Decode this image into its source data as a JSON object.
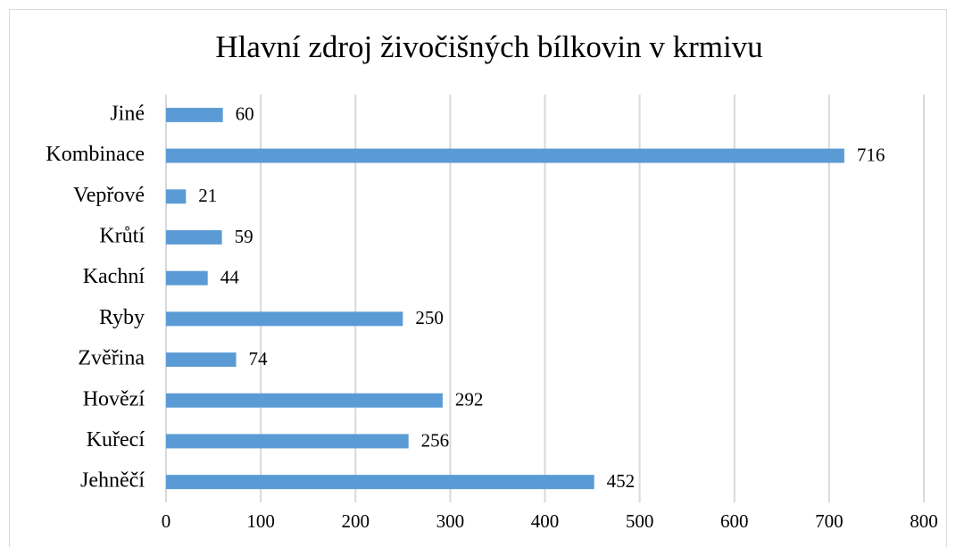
{
  "chart_data": {
    "type": "bar",
    "orientation": "horizontal",
    "title": "Hlavní zdroj živočišných bílkovin v krmivu",
    "categories": [
      "Jiné",
      "Kombinace",
      "Vepřové",
      "Krůtí",
      "Kachní",
      "Ryby",
      "Zvěřina",
      "Hovězí",
      "Kuřecí",
      "Jehněčí"
    ],
    "values": [
      60,
      716,
      21,
      59,
      44,
      250,
      74,
      292,
      256,
      452
    ],
    "color": "#5b9bd5",
    "xlim": [
      0,
      800
    ],
    "xticks": [
      0,
      100,
      200,
      300,
      400,
      500,
      600,
      700,
      800
    ],
    "grid": true
  }
}
